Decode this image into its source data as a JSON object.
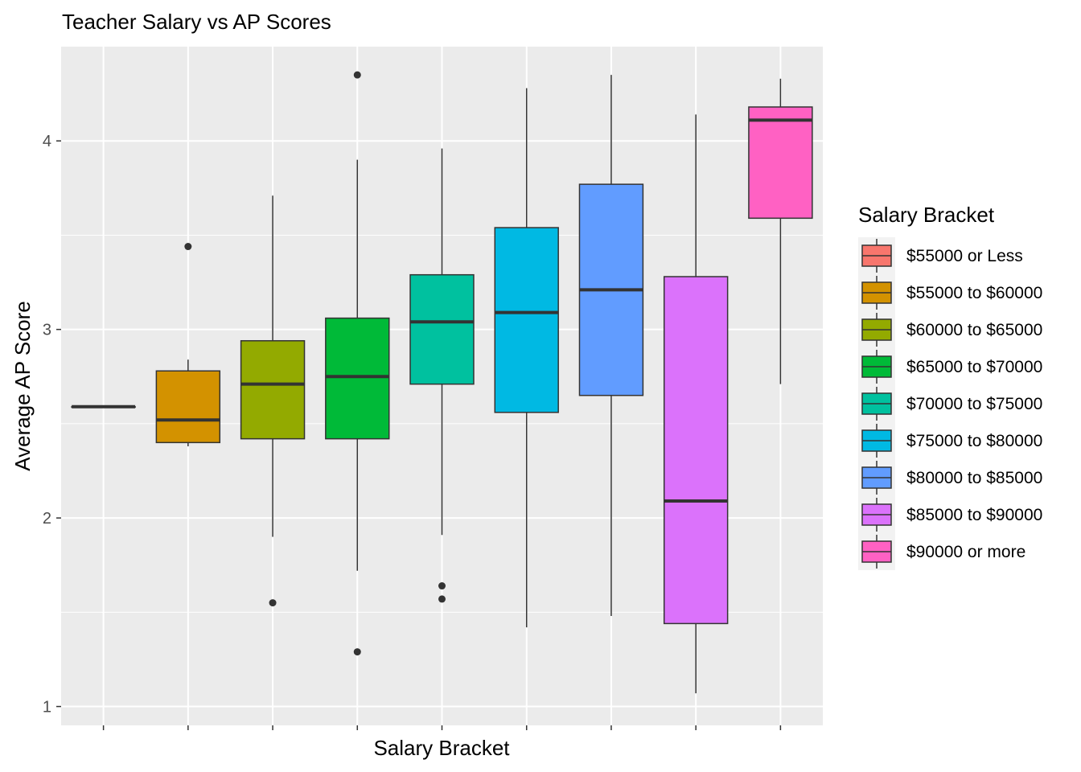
{
  "chart_data": {
    "type": "boxplot",
    "title": "Teacher Salary vs AP Scores",
    "xlabel": "Salary Bracket",
    "ylabel": "Average AP Score",
    "ylim": [
      0.9,
      4.5
    ],
    "yticks": [
      1,
      2,
      3,
      4
    ],
    "grid": true,
    "legend_position": "right",
    "legend_title": "Salary Bracket",
    "series": [
      {
        "name": "$55000 or Less",
        "color": "#F8766D",
        "min": 2.59,
        "q1": 2.59,
        "median": 2.59,
        "q3": 2.59,
        "max": 2.59,
        "outliers": []
      },
      {
        "name": "$55000 to $60000",
        "color": "#D39200",
        "min": 2.38,
        "q1": 2.4,
        "median": 2.52,
        "q3": 2.78,
        "max": 2.84,
        "outliers": [
          3.44
        ]
      },
      {
        "name": "$60000 to $65000",
        "color": "#93AA00",
        "min": 1.9,
        "q1": 2.42,
        "median": 2.71,
        "q3": 2.94,
        "max": 3.71,
        "outliers": [
          1.55
        ]
      },
      {
        "name": "$65000 to $70000",
        "color": "#00BA38",
        "min": 1.72,
        "q1": 2.42,
        "median": 2.75,
        "q3": 3.06,
        "max": 3.9,
        "outliers": [
          4.35,
          1.29
        ]
      },
      {
        "name": "$70000 to $75000",
        "color": "#00C19F",
        "min": 1.91,
        "q1": 2.71,
        "median": 3.04,
        "q3": 3.29,
        "max": 3.96,
        "outliers": [
          1.64,
          1.57
        ]
      },
      {
        "name": "$75000 to $80000",
        "color": "#00B9E3",
        "min": 1.42,
        "q1": 2.56,
        "median": 3.09,
        "q3": 3.54,
        "max": 4.28,
        "outliers": []
      },
      {
        "name": "$80000 to $85000",
        "color": "#619CFF",
        "min": 1.48,
        "q1": 2.65,
        "median": 3.21,
        "q3": 3.77,
        "max": 4.35,
        "outliers": []
      },
      {
        "name": "$85000 to $90000",
        "color": "#DB72FB",
        "min": 1.07,
        "q1": 1.44,
        "median": 2.09,
        "q3": 3.28,
        "max": 4.14,
        "outliers": []
      },
      {
        "name": "$90000 or more",
        "color": "#FF61C3",
        "min": 2.71,
        "q1": 3.59,
        "median": 4.11,
        "q3": 4.18,
        "max": 4.33,
        "outliers": []
      }
    ]
  },
  "colors": {
    "panel_background": "#EBEBEB",
    "grid_major": "#FFFFFF",
    "box_outline": "#333333"
  }
}
